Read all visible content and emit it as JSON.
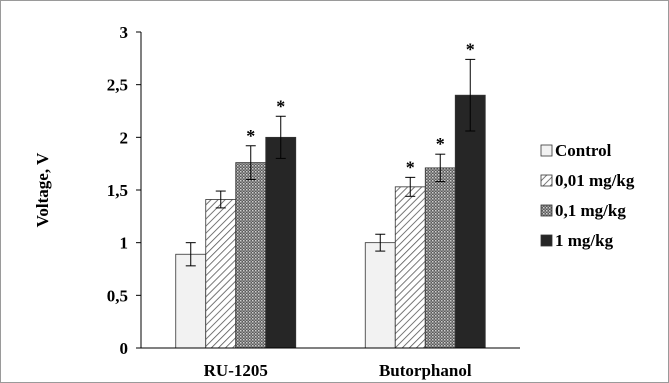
{
  "chart_data": {
    "type": "bar",
    "title": "",
    "xlabel": "",
    "ylabel": "Voltage, V",
    "ylim": [
      0,
      3
    ],
    "yticks": [
      "0",
      "0,5",
      "1",
      "1,5",
      "2",
      "2,5",
      "3"
    ],
    "ytick_values": [
      0,
      0.5,
      1,
      1.5,
      2,
      2.5,
      3
    ],
    "categories": [
      "RU-1205",
      "Butorphanol"
    ],
    "grid": false,
    "legend_position": "right",
    "significance_marker": "*",
    "series": [
      {
        "name": "Control",
        "values": [
          0.89,
          1.0
        ],
        "errors": [
          0.11,
          0.08
        ],
        "significant": [
          false,
          false
        ],
        "fill": "#f2f2f2",
        "pattern": "solid-light"
      },
      {
        "name": "0,01 mg/kg",
        "values": [
          1.41,
          1.53
        ],
        "errors": [
          0.08,
          0.09
        ],
        "significant": [
          false,
          true
        ],
        "fill": "#d9d9d9",
        "pattern": "diagonal-hatch"
      },
      {
        "name": "0,1 mg/kg",
        "values": [
          1.76,
          1.71
        ],
        "errors": [
          0.16,
          0.13
        ],
        "significant": [
          true,
          true
        ],
        "fill": "#808080",
        "pattern": "crosshatch"
      },
      {
        "name": "1 mg/kg",
        "values": [
          2.0,
          2.4
        ],
        "errors": [
          0.2,
          0.34
        ],
        "significant": [
          true,
          true
        ],
        "fill": "#262626",
        "pattern": "solid-dark"
      }
    ]
  }
}
